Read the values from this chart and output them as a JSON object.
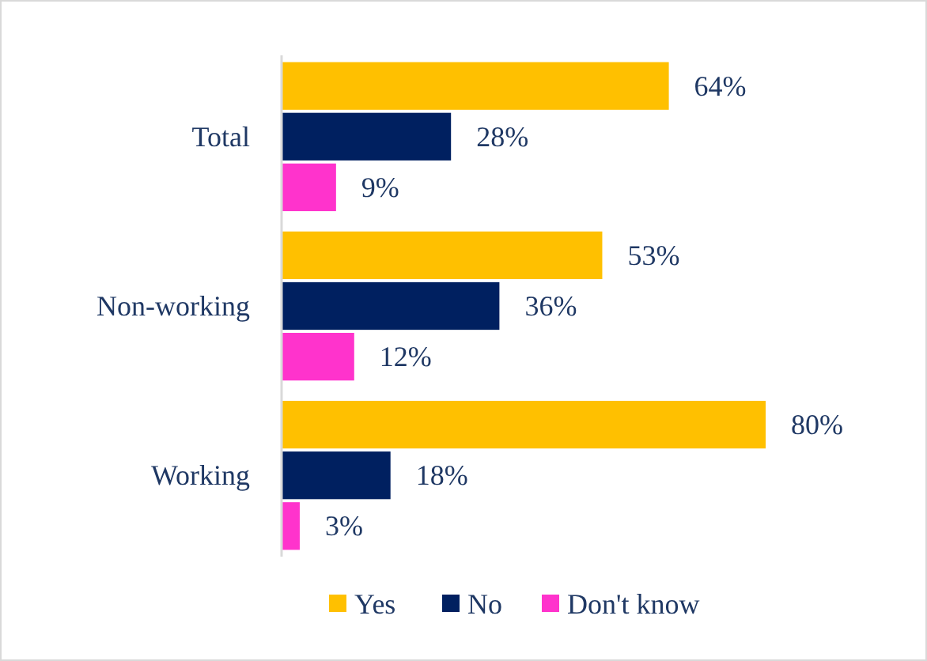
{
  "chart_data": {
    "type": "bar",
    "orientation": "horizontal",
    "categories": [
      "Total",
      "Non-working",
      "Working"
    ],
    "series": [
      {
        "name": "Yes",
        "color": "#ffc000",
        "values": [
          64,
          53,
          80
        ],
        "value_labels": [
          "64%",
          "53%",
          "80%"
        ]
      },
      {
        "name": "No",
        "color": "#002060",
        "values": [
          28,
          36,
          18
        ],
        "value_labels": [
          "28%",
          "36%",
          "18%"
        ]
      },
      {
        "name": "Don't know",
        "color": "#ff33cc",
        "values": [
          9,
          12,
          3
        ],
        "value_labels": [
          "9%",
          "12%",
          "3%"
        ]
      }
    ],
    "legend": "bottom",
    "grid": false
  }
}
